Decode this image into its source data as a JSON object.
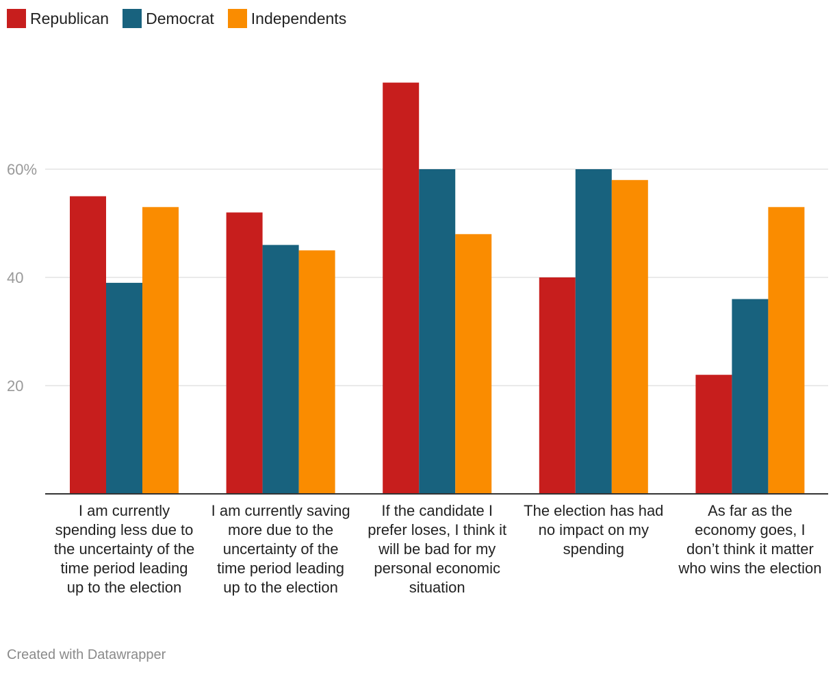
{
  "chart_data": {
    "type": "bar",
    "title": "",
    "xlabel": "",
    "ylabel": "",
    "ylim": [
      0,
      80
    ],
    "yticks": [
      {
        "value": 20,
        "label": "20"
      },
      {
        "value": 40,
        "label": "40"
      },
      {
        "value": 60,
        "label": "60%"
      }
    ],
    "categories": [
      "I am currently spending less due to the uncertainty of the time period leading up to the election",
      "I am currently saving more due to the uncertainty of the time period leading up to the election",
      "If the candidate I prefer loses, I think it will be bad for my personal economic situation",
      "The election has had no impact on my spending",
      "As far as the economy goes, I don’t think it matter who wins the election"
    ],
    "series": [
      {
        "name": "Republican",
        "color": "#c71e1d",
        "values": [
          55,
          52,
          76,
          40,
          22
        ]
      },
      {
        "name": "Democrat",
        "color": "#18627e",
        "values": [
          39,
          46,
          60,
          60,
          36
        ]
      },
      {
        "name": "Independents",
        "color": "#fa8c00",
        "values": [
          53,
          45,
          48,
          58,
          53
        ]
      }
    ],
    "legend_position": "top-left",
    "grid": true
  },
  "footer": "Created with Datawrapper"
}
